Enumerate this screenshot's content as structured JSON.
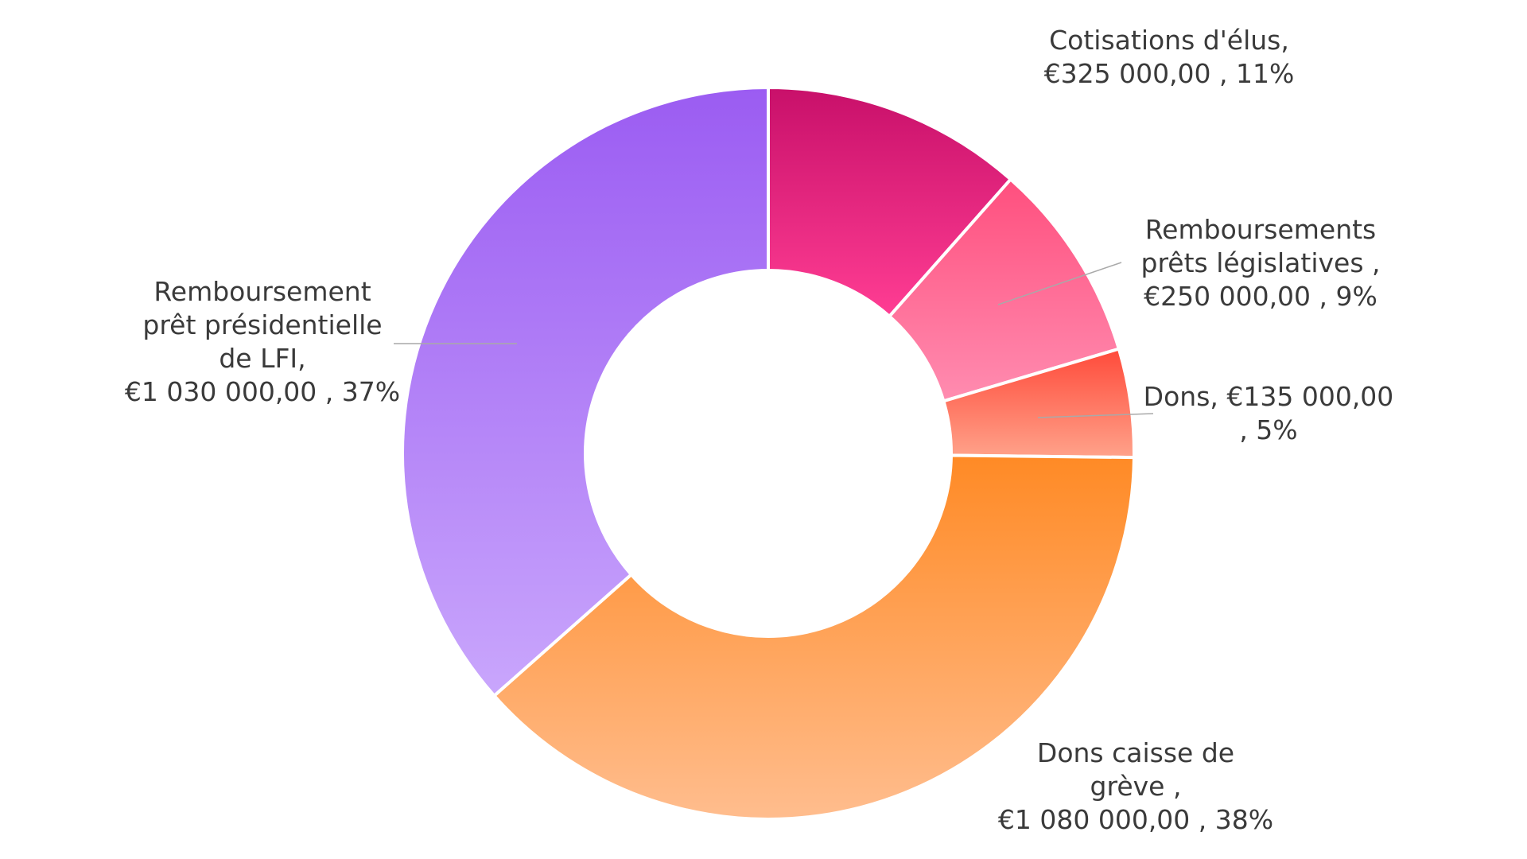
{
  "chart_data": {
    "type": "pie",
    "donut": true,
    "title": "",
    "categories": [
      "Cotisations d'élus",
      "Remboursements prêts législatives",
      "Dons",
      "Dons caisse de grève",
      "Remboursement prêt présidentielle de LFI"
    ],
    "values": [
      325000,
      250000,
      135000,
      1080000,
      1030000
    ],
    "labels": [
      {
        "lines": [
          "Cotisations d'élus,",
          "€325 000,00 , 11%"
        ]
      },
      {
        "lines": [
          "Remboursements",
          "prêts législatives ,",
          "€250 000,00 , 9%"
        ]
      },
      {
        "lines": [
          "Dons,  €135 000,00",
          ", 5%"
        ]
      },
      {
        "lines": [
          "Dons caisse de",
          "grève ,",
          "€1 080 000,00 , 38%"
        ]
      },
      {
        "lines": [
          "Remboursement",
          "prêt présidentielle",
          "de LFI,",
          "€1 030 000,00 , 37%"
        ]
      }
    ],
    "colors": [
      {
        "top": "#c8106a",
        "bottom": "#ff3d93"
      },
      {
        "top": "#ff4f7e",
        "bottom": "#ff8cb0"
      },
      {
        "top": "#ff4a3a",
        "bottom": "#ffa28a"
      },
      {
        "top": "#ff8a25",
        "bottom": "#ffbd8e"
      },
      {
        "top": "#9b5cf2",
        "bottom": "#c9a6fc"
      }
    ],
    "legend": "none"
  }
}
